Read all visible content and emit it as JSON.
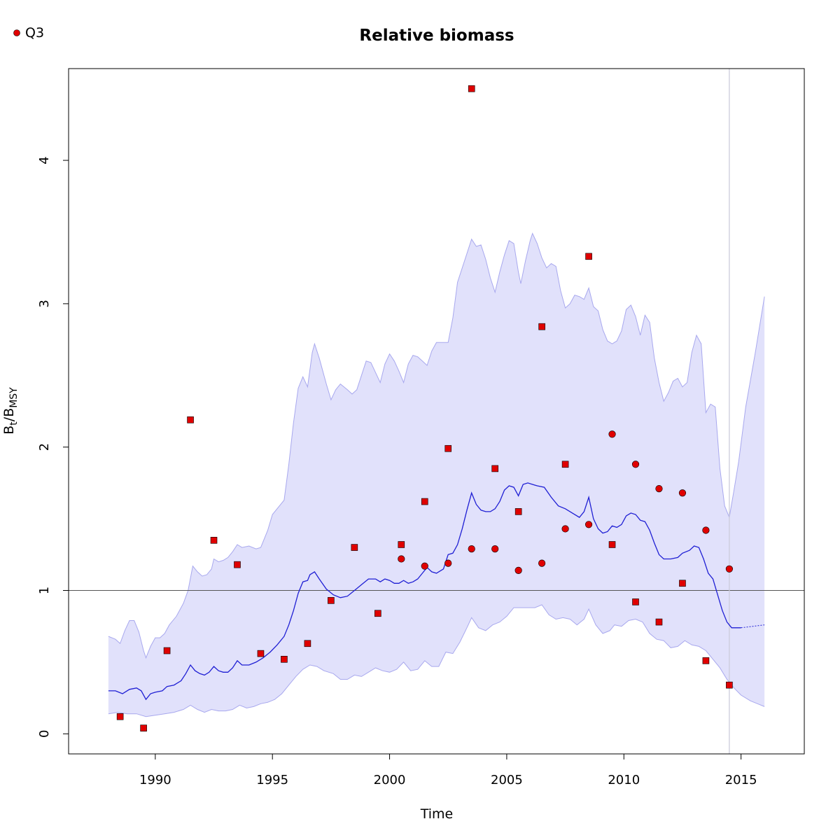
{
  "chart_data": {
    "type": "line",
    "title": "Relative biomass",
    "xlabel": "Time",
    "ylabel": {
      "main": "B",
      "sub1": "t",
      "slash": "/B",
      "sub2": "MSY"
    },
    "xlim": [
      1986.3,
      2017.7
    ],
    "ylim": [
      -0.14,
      4.64
    ],
    "x_ticks": [
      1990,
      1995,
      2000,
      2005,
      2010,
      2015
    ],
    "y_ticks": [
      0,
      1,
      2,
      3,
      4
    ],
    "grid": false,
    "reference_line_y": 1,
    "vline_x": 2014.5,
    "legend": {
      "position": "top-left",
      "entries": [
        {
          "label": "Q3",
          "marker": "circle"
        }
      ]
    },
    "colors": {
      "band": "#e1e1fb",
      "band_edge": "#a8a8ee",
      "line": "#1f1fd4",
      "points": "#e00000",
      "reference": "#555555",
      "vline": "#c9c9d9"
    },
    "estimate_line": [
      [
        1988.0,
        0.3
      ],
      [
        1988.3,
        0.3
      ],
      [
        1988.6,
        0.28
      ],
      [
        1988.9,
        0.31
      ],
      [
        1989.2,
        0.32
      ],
      [
        1989.4,
        0.3
      ],
      [
        1989.6,
        0.24
      ],
      [
        1989.8,
        0.28
      ],
      [
        1990.0,
        0.29
      ],
      [
        1990.3,
        0.3
      ],
      [
        1990.5,
        0.33
      ],
      [
        1990.8,
        0.34
      ],
      [
        1991.1,
        0.37
      ],
      [
        1991.3,
        0.42
      ],
      [
        1991.5,
        0.48
      ],
      [
        1991.7,
        0.44
      ],
      [
        1991.9,
        0.42
      ],
      [
        1992.1,
        0.41
      ],
      [
        1992.3,
        0.43
      ],
      [
        1992.5,
        0.47
      ],
      [
        1992.7,
        0.44
      ],
      [
        1992.9,
        0.43
      ],
      [
        1993.1,
        0.43
      ],
      [
        1993.3,
        0.46
      ],
      [
        1993.5,
        0.51
      ],
      [
        1993.7,
        0.48
      ],
      [
        1994.0,
        0.48
      ],
      [
        1994.3,
        0.5
      ],
      [
        1994.6,
        0.53
      ],
      [
        1994.9,
        0.57
      ],
      [
        1995.2,
        0.62
      ],
      [
        1995.5,
        0.68
      ],
      [
        1995.7,
        0.76
      ],
      [
        1995.9,
        0.86
      ],
      [
        1996.1,
        0.98
      ],
      [
        1996.3,
        1.06
      ],
      [
        1996.5,
        1.07
      ],
      [
        1996.6,
        1.11
      ],
      [
        1996.8,
        1.13
      ],
      [
        1997.0,
        1.08
      ],
      [
        1997.3,
        1.01
      ],
      [
        1997.6,
        0.97
      ],
      [
        1997.9,
        0.95
      ],
      [
        1998.2,
        0.96
      ],
      [
        1998.5,
        1.0
      ],
      [
        1998.8,
        1.04
      ],
      [
        1999.1,
        1.08
      ],
      [
        1999.4,
        1.08
      ],
      [
        1999.6,
        1.06
      ],
      [
        1999.8,
        1.08
      ],
      [
        2000.0,
        1.07
      ],
      [
        2000.2,
        1.05
      ],
      [
        2000.4,
        1.05
      ],
      [
        2000.6,
        1.07
      ],
      [
        2000.8,
        1.05
      ],
      [
        2001.0,
        1.06
      ],
      [
        2001.2,
        1.08
      ],
      [
        2001.4,
        1.12
      ],
      [
        2001.6,
        1.16
      ],
      [
        2001.8,
        1.13
      ],
      [
        2002.0,
        1.12
      ],
      [
        2002.3,
        1.15
      ],
      [
        2002.5,
        1.25
      ],
      [
        2002.7,
        1.26
      ],
      [
        2002.9,
        1.32
      ],
      [
        2003.1,
        1.43
      ],
      [
        2003.3,
        1.56
      ],
      [
        2003.5,
        1.68
      ],
      [
        2003.7,
        1.6
      ],
      [
        2003.9,
        1.56
      ],
      [
        2004.1,
        1.55
      ],
      [
        2004.3,
        1.55
      ],
      [
        2004.5,
        1.57
      ],
      [
        2004.7,
        1.62
      ],
      [
        2004.9,
        1.7
      ],
      [
        2005.1,
        1.73
      ],
      [
        2005.3,
        1.72
      ],
      [
        2005.5,
        1.66
      ],
      [
        2005.7,
        1.74
      ],
      [
        2005.9,
        1.75
      ],
      [
        2006.1,
        1.74
      ],
      [
        2006.3,
        1.73
      ],
      [
        2006.6,
        1.72
      ],
      [
        2006.9,
        1.65
      ],
      [
        2007.2,
        1.59
      ],
      [
        2007.5,
        1.57
      ],
      [
        2007.8,
        1.54
      ],
      [
        2008.1,
        1.51
      ],
      [
        2008.3,
        1.55
      ],
      [
        2008.5,
        1.65
      ],
      [
        2008.7,
        1.5
      ],
      [
        2008.9,
        1.43
      ],
      [
        2009.1,
        1.4
      ],
      [
        2009.3,
        1.41
      ],
      [
        2009.5,
        1.45
      ],
      [
        2009.7,
        1.44
      ],
      [
        2009.9,
        1.46
      ],
      [
        2010.1,
        1.52
      ],
      [
        2010.3,
        1.54
      ],
      [
        2010.5,
        1.53
      ],
      [
        2010.7,
        1.49
      ],
      [
        2010.9,
        1.48
      ],
      [
        2011.1,
        1.42
      ],
      [
        2011.3,
        1.33
      ],
      [
        2011.5,
        1.25
      ],
      [
        2011.7,
        1.22
      ],
      [
        2012.0,
        1.22
      ],
      [
        2012.3,
        1.23
      ],
      [
        2012.5,
        1.26
      ],
      [
        2012.8,
        1.28
      ],
      [
        2013.0,
        1.31
      ],
      [
        2013.2,
        1.3
      ],
      [
        2013.4,
        1.22
      ],
      [
        2013.6,
        1.12
      ],
      [
        2013.8,
        1.08
      ],
      [
        2014.0,
        0.97
      ],
      [
        2014.2,
        0.86
      ],
      [
        2014.4,
        0.78
      ],
      [
        2014.6,
        0.74
      ],
      [
        2014.8,
        0.74
      ],
      [
        2015.0,
        0.74
      ]
    ],
    "projection_line": [
      [
        2015.0,
        0.74
      ],
      [
        2016.0,
        0.76
      ]
    ],
    "band_upper": [
      [
        1988.0,
        0.68
      ],
      [
        1988.3,
        0.66
      ],
      [
        1988.5,
        0.63
      ],
      [
        1988.7,
        0.72
      ],
      [
        1988.9,
        0.79
      ],
      [
        1989.1,
        0.79
      ],
      [
        1989.3,
        0.71
      ],
      [
        1989.5,
        0.58
      ],
      [
        1989.6,
        0.53
      ],
      [
        1989.8,
        0.61
      ],
      [
        1990.0,
        0.67
      ],
      [
        1990.2,
        0.67
      ],
      [
        1990.4,
        0.7
      ],
      [
        1990.6,
        0.76
      ],
      [
        1990.9,
        0.82
      ],
      [
        1991.2,
        0.91
      ],
      [
        1991.4,
        1.0
      ],
      [
        1991.6,
        1.17
      ],
      [
        1991.8,
        1.13
      ],
      [
        1992.0,
        1.1
      ],
      [
        1992.2,
        1.11
      ],
      [
        1992.4,
        1.15
      ],
      [
        1992.5,
        1.22
      ],
      [
        1992.7,
        1.2
      ],
      [
        1992.9,
        1.21
      ],
      [
        1993.1,
        1.23
      ],
      [
        1993.3,
        1.27
      ],
      [
        1993.5,
        1.32
      ],
      [
        1993.7,
        1.3
      ],
      [
        1994.0,
        1.31
      ],
      [
        1994.3,
        1.29
      ],
      [
        1994.5,
        1.3
      ],
      [
        1994.8,
        1.42
      ],
      [
        1995.0,
        1.53
      ],
      [
        1995.3,
        1.59
      ],
      [
        1995.5,
        1.63
      ],
      [
        1995.7,
        1.88
      ],
      [
        1995.9,
        2.17
      ],
      [
        1996.1,
        2.41
      ],
      [
        1996.3,
        2.49
      ],
      [
        1996.5,
        2.42
      ],
      [
        1996.7,
        2.66
      ],
      [
        1996.8,
        2.72
      ],
      [
        1997.0,
        2.62
      ],
      [
        1997.3,
        2.44
      ],
      [
        1997.5,
        2.33
      ],
      [
        1997.7,
        2.4
      ],
      [
        1997.9,
        2.44
      ],
      [
        1998.2,
        2.4
      ],
      [
        1998.4,
        2.37
      ],
      [
        1998.6,
        2.4
      ],
      [
        1998.8,
        2.5
      ],
      [
        1999.0,
        2.6
      ],
      [
        1999.2,
        2.59
      ],
      [
        1999.4,
        2.52
      ],
      [
        1999.6,
        2.45
      ],
      [
        1999.8,
        2.58
      ],
      [
        2000.0,
        2.65
      ],
      [
        2000.2,
        2.6
      ],
      [
        2000.4,
        2.53
      ],
      [
        2000.6,
        2.45
      ],
      [
        2000.8,
        2.58
      ],
      [
        2001.0,
        2.64
      ],
      [
        2001.2,
        2.63
      ],
      [
        2001.4,
        2.6
      ],
      [
        2001.6,
        2.57
      ],
      [
        2001.8,
        2.67
      ],
      [
        2002.0,
        2.73
      ],
      [
        2002.2,
        2.73
      ],
      [
        2002.5,
        2.73
      ],
      [
        2002.7,
        2.9
      ],
      [
        2002.9,
        3.15
      ],
      [
        2003.2,
        3.3
      ],
      [
        2003.5,
        3.45
      ],
      [
        2003.7,
        3.4
      ],
      [
        2003.9,
        3.41
      ],
      [
        2004.1,
        3.31
      ],
      [
        2004.3,
        3.18
      ],
      [
        2004.5,
        3.08
      ],
      [
        2004.7,
        3.22
      ],
      [
        2004.9,
        3.34
      ],
      [
        2005.1,
        3.44
      ],
      [
        2005.3,
        3.42
      ],
      [
        2005.5,
        3.22
      ],
      [
        2005.6,
        3.14
      ],
      [
        2005.8,
        3.3
      ],
      [
        2006.0,
        3.44
      ],
      [
        2006.1,
        3.49
      ],
      [
        2006.3,
        3.42
      ],
      [
        2006.5,
        3.32
      ],
      [
        2006.7,
        3.25
      ],
      [
        2006.9,
        3.28
      ],
      [
        2007.1,
        3.26
      ],
      [
        2007.3,
        3.09
      ],
      [
        2007.5,
        2.97
      ],
      [
        2007.7,
        3.0
      ],
      [
        2007.9,
        3.06
      ],
      [
        2008.1,
        3.05
      ],
      [
        2008.3,
        3.03
      ],
      [
        2008.5,
        3.11
      ],
      [
        2008.7,
        2.98
      ],
      [
        2008.9,
        2.95
      ],
      [
        2009.1,
        2.82
      ],
      [
        2009.3,
        2.74
      ],
      [
        2009.5,
        2.72
      ],
      [
        2009.7,
        2.74
      ],
      [
        2009.9,
        2.81
      ],
      [
        2010.1,
        2.96
      ],
      [
        2010.3,
        2.99
      ],
      [
        2010.5,
        2.91
      ],
      [
        2010.7,
        2.78
      ],
      [
        2010.9,
        2.92
      ],
      [
        2011.1,
        2.87
      ],
      [
        2011.3,
        2.62
      ],
      [
        2011.5,
        2.45
      ],
      [
        2011.7,
        2.32
      ],
      [
        2011.9,
        2.38
      ],
      [
        2012.1,
        2.46
      ],
      [
        2012.3,
        2.48
      ],
      [
        2012.5,
        2.42
      ],
      [
        2012.7,
        2.45
      ],
      [
        2012.9,
        2.66
      ],
      [
        2013.1,
        2.78
      ],
      [
        2013.3,
        2.72
      ],
      [
        2013.5,
        2.24
      ],
      [
        2013.7,
        2.3
      ],
      [
        2013.9,
        2.28
      ],
      [
        2014.1,
        1.85
      ],
      [
        2014.3,
        1.59
      ],
      [
        2014.5,
        1.51
      ],
      [
        2014.7,
        1.7
      ],
      [
        2014.9,
        1.9
      ],
      [
        2015.2,
        2.28
      ],
      [
        2015.6,
        2.65
      ],
      [
        2016.0,
        3.05
      ]
    ],
    "band_lower": [
      [
        1988.0,
        0.14
      ],
      [
        1988.4,
        0.15
      ],
      [
        1988.8,
        0.14
      ],
      [
        1989.2,
        0.14
      ],
      [
        1989.6,
        0.12
      ],
      [
        1990.0,
        0.13
      ],
      [
        1990.4,
        0.14
      ],
      [
        1990.8,
        0.15
      ],
      [
        1991.2,
        0.17
      ],
      [
        1991.5,
        0.2
      ],
      [
        1991.8,
        0.17
      ],
      [
        1992.1,
        0.15
      ],
      [
        1992.4,
        0.17
      ],
      [
        1992.7,
        0.16
      ],
      [
        1993.0,
        0.16
      ],
      [
        1993.3,
        0.17
      ],
      [
        1993.6,
        0.2
      ],
      [
        1993.9,
        0.18
      ],
      [
        1994.2,
        0.19
      ],
      [
        1994.5,
        0.21
      ],
      [
        1994.8,
        0.22
      ],
      [
        1995.1,
        0.24
      ],
      [
        1995.4,
        0.28
      ],
      [
        1995.7,
        0.34
      ],
      [
        1996.0,
        0.4
      ],
      [
        1996.3,
        0.45
      ],
      [
        1996.6,
        0.48
      ],
      [
        1996.9,
        0.47
      ],
      [
        1997.2,
        0.44
      ],
      [
        1997.6,
        0.42
      ],
      [
        1997.9,
        0.38
      ],
      [
        1998.2,
        0.38
      ],
      [
        1998.5,
        0.41
      ],
      [
        1998.8,
        0.4
      ],
      [
        1999.1,
        0.43
      ],
      [
        1999.4,
        0.46
      ],
      [
        1999.7,
        0.44
      ],
      [
        2000.0,
        0.43
      ],
      [
        2000.3,
        0.45
      ],
      [
        2000.6,
        0.5
      ],
      [
        2000.9,
        0.44
      ],
      [
        2001.2,
        0.45
      ],
      [
        2001.5,
        0.51
      ],
      [
        2001.8,
        0.47
      ],
      [
        2002.1,
        0.47
      ],
      [
        2002.4,
        0.57
      ],
      [
        2002.7,
        0.56
      ],
      [
        2003.0,
        0.64
      ],
      [
        2003.3,
        0.74
      ],
      [
        2003.5,
        0.81
      ],
      [
        2003.8,
        0.74
      ],
      [
        2004.1,
        0.72
      ],
      [
        2004.4,
        0.76
      ],
      [
        2004.7,
        0.78
      ],
      [
        2005.0,
        0.82
      ],
      [
        2005.3,
        0.88
      ],
      [
        2005.6,
        0.88
      ],
      [
        2005.9,
        0.88
      ],
      [
        2006.2,
        0.88
      ],
      [
        2006.5,
        0.9
      ],
      [
        2006.8,
        0.83
      ],
      [
        2007.1,
        0.8
      ],
      [
        2007.4,
        0.81
      ],
      [
        2007.7,
        0.8
      ],
      [
        2008.0,
        0.76
      ],
      [
        2008.3,
        0.8
      ],
      [
        2008.5,
        0.87
      ],
      [
        2008.8,
        0.76
      ],
      [
        2009.1,
        0.7
      ],
      [
        2009.4,
        0.72
      ],
      [
        2009.6,
        0.76
      ],
      [
        2009.9,
        0.75
      ],
      [
        2010.2,
        0.79
      ],
      [
        2010.5,
        0.8
      ],
      [
        2010.8,
        0.78
      ],
      [
        2011.1,
        0.7
      ],
      [
        2011.4,
        0.66
      ],
      [
        2011.7,
        0.65
      ],
      [
        2012.0,
        0.6
      ],
      [
        2012.3,
        0.61
      ],
      [
        2012.6,
        0.65
      ],
      [
        2012.9,
        0.62
      ],
      [
        2013.2,
        0.61
      ],
      [
        2013.5,
        0.58
      ],
      [
        2013.8,
        0.52
      ],
      [
        2014.1,
        0.46
      ],
      [
        2014.4,
        0.38
      ],
      [
        2014.7,
        0.32
      ],
      [
        2015.0,
        0.27
      ],
      [
        2015.4,
        0.23
      ],
      [
        2015.7,
        0.21
      ],
      [
        2016.0,
        0.19
      ]
    ],
    "points_square": [
      [
        1988.5,
        0.12
      ],
      [
        1989.5,
        0.04
      ],
      [
        1990.5,
        0.58
      ],
      [
        1991.5,
        2.19
      ],
      [
        1992.5,
        1.35
      ],
      [
        1993.5,
        1.18
      ],
      [
        1994.5,
        0.56
      ],
      [
        1995.5,
        0.52
      ],
      [
        1996.5,
        0.63
      ],
      [
        1997.5,
        0.93
      ],
      [
        1998.5,
        1.3
      ],
      [
        1999.5,
        0.84
      ],
      [
        2000.5,
        1.32
      ],
      [
        2001.5,
        1.62
      ],
      [
        2002.5,
        1.99
      ],
      [
        2003.5,
        4.5
      ],
      [
        2004.5,
        1.85
      ],
      [
        2005.5,
        1.55
      ],
      [
        2006.5,
        2.84
      ],
      [
        2007.5,
        1.88
      ],
      [
        2008.5,
        3.33
      ],
      [
        2009.5,
        1.32
      ],
      [
        2010.5,
        0.92
      ],
      [
        2011.5,
        0.78
      ],
      [
        2012.5,
        1.05
      ],
      [
        2013.5,
        0.51
      ],
      [
        2014.5,
        0.34
      ]
    ],
    "points_circle": [
      [
        2000.5,
        1.22
      ],
      [
        2001.5,
        1.17
      ],
      [
        2002.5,
        1.19
      ],
      [
        2003.5,
        1.29
      ],
      [
        2004.5,
        1.29
      ],
      [
        2005.5,
        1.14
      ],
      [
        2006.5,
        1.19
      ],
      [
        2007.5,
        1.43
      ],
      [
        2008.5,
        1.46
      ],
      [
        2009.5,
        2.09
      ],
      [
        2010.5,
        1.88
      ],
      [
        2011.5,
        1.71
      ],
      [
        2012.5,
        1.68
      ],
      [
        2013.5,
        1.42
      ],
      [
        2014.5,
        1.15
      ]
    ]
  }
}
